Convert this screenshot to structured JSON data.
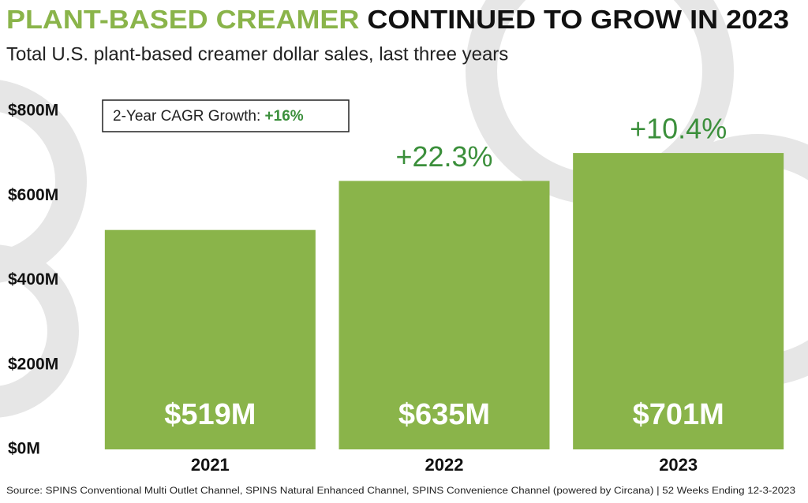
{
  "chart_data": {
    "type": "bar",
    "title": [
      "PLANT-BASED CREAMER",
      "CONTINUED TO GROW IN 2023"
    ],
    "subtitle": "Total U.S. plant-based creamer dollar sales, last three years",
    "annotation": {
      "label": "2-Year CAGR Growth:",
      "value": "+16%"
    },
    "categories": [
      "2021",
      "2022",
      "2023"
    ],
    "values": [
      519,
      635,
      701
    ],
    "value_labels": [
      "$519M",
      "$635M",
      "$701M"
    ],
    "growth_labels": [
      null,
      "+22.3%",
      "+10.4%"
    ],
    "color": "#8ab44a",
    "ylim": [
      0,
      800
    ],
    "yticks": [
      {
        "value": 0,
        "label": "$0M"
      },
      {
        "value": 200,
        "label": "$200M"
      },
      {
        "value": 400,
        "label": "$400M"
      },
      {
        "value": 600,
        "label": "$600M"
      },
      {
        "value": 800,
        "label": "$800M"
      }
    ],
    "grid": false,
    "source": "Source: SPINS Conventional Multi Outlet Channel, SPINS Natural Enhanced Channel, SPINS Convenience Channel (powered by Circana) | 52 Weeks Ending 12-3-2023"
  }
}
